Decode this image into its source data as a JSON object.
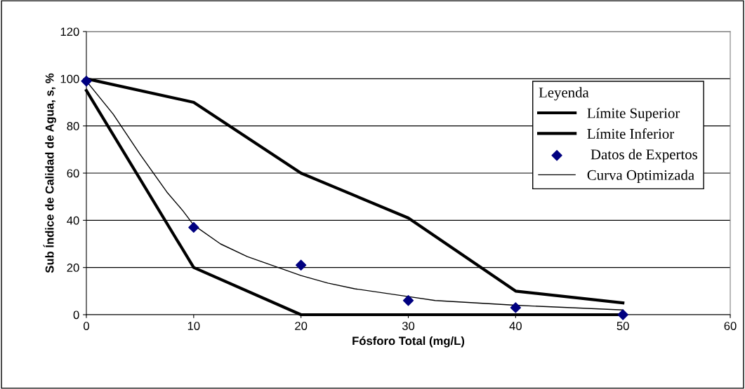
{
  "chart_data": {
    "type": "line",
    "xlabel": "Fósforo Total (mg/L)",
    "ylabel": "Sub Índice de Calidad de Agua, s, %",
    "legend_title": "Leyenda",
    "xlim": [
      0,
      60
    ],
    "xticks": [
      0,
      10,
      20,
      30,
      40,
      50,
      60
    ],
    "ylim": [
      0,
      120
    ],
    "yticks": [
      0,
      20,
      40,
      60,
      80,
      100,
      120
    ],
    "grid": "y",
    "legend": "top right",
    "series": [
      {
        "name": "Límite Superior",
        "color": "#000000",
        "x": [
          0,
          10,
          20,
          30,
          40,
          50
        ],
        "values": [
          100,
          90,
          60,
          41,
          10,
          5
        ]
      },
      {
        "name": "Límite Inferior",
        "color": "#000000",
        "x": [
          0,
          10,
          20,
          30,
          40,
          50
        ],
        "values": [
          95,
          20,
          0,
          0,
          0,
          0
        ]
      },
      {
        "name": " Datos de Expertos",
        "type": "scatter",
        "marker": "diamond",
        "color": "#000080",
        "x": [
          0,
          10,
          20,
          30,
          40,
          50
        ],
        "values": [
          99,
          37,
          21,
          6,
          3,
          0
        ]
      },
      {
        "name": "Curva Optimizada",
        "color": "#000000",
        "x": [
          0,
          2.5,
          5,
          7.5,
          9,
          10,
          12.5,
          15,
          20,
          22.5,
          25,
          30,
          32.5,
          40,
          50
        ],
        "values": [
          99,
          85,
          68,
          52,
          44,
          38,
          30,
          24.6,
          16.6,
          13.4,
          11,
          7.7,
          6,
          4,
          2
        ]
      }
    ]
  }
}
